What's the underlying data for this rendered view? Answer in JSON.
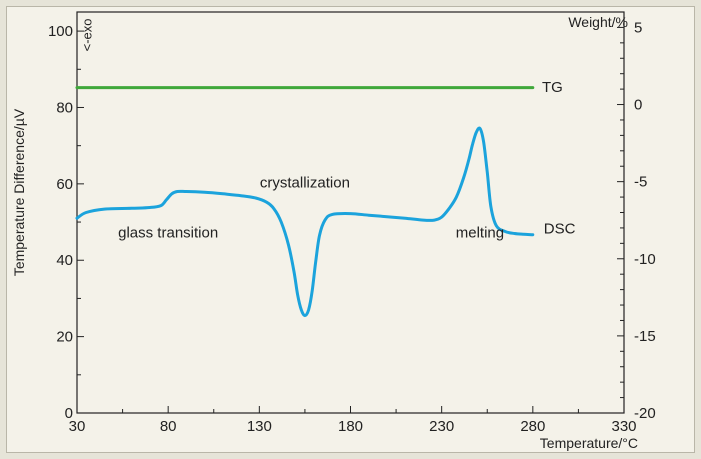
{
  "chart_data": {
    "type": "line",
    "xlabel": "Temperature/°C",
    "ylabel_left": "Temperature Difference/µV",
    "ylabel_right": "Weight/%",
    "xlim": [
      30,
      330
    ],
    "ylim_left": [
      0,
      105
    ],
    "ylim_right": [
      -20,
      6
    ],
    "x_ticks": [
      30,
      80,
      130,
      180,
      230,
      280,
      330
    ],
    "y_ticks_left": [
      0,
      20,
      40,
      60,
      80,
      100
    ],
    "y_ticks_right": [
      5,
      0,
      -5,
      -10,
      -15,
      -20
    ],
    "grid": false,
    "series": [
      {
        "name": "TG",
        "axis": "right",
        "color": "#3fa83a",
        "x": [
          30,
          280
        ],
        "y": [
          1.1,
          1.1
        ]
      },
      {
        "name": "DSC",
        "axis": "left",
        "color": "#1ba3dc",
        "x": [
          30,
          35,
          45,
          60,
          70,
          76,
          79,
          82,
          85,
          90,
          100,
          110,
          120,
          128,
          134,
          138,
          142,
          146,
          149,
          151,
          153,
          155,
          157,
          159,
          161,
          163,
          166,
          170,
          180,
          190,
          200,
          210,
          220,
          226,
          230,
          234,
          238,
          242,
          245,
          247,
          249,
          251,
          253,
          255,
          257,
          260,
          265,
          270,
          275,
          280
        ],
        "y": [
          51,
          52.5,
          53.4,
          53.6,
          53.8,
          54.3,
          55.8,
          57.4,
          58,
          58,
          57.8,
          57.4,
          56.9,
          56.3,
          55.2,
          53.5,
          50,
          44,
          37,
          31,
          27,
          25.5,
          27,
          32,
          40,
          46.5,
          50.5,
          52,
          52.2,
          51.8,
          51.4,
          51,
          50.5,
          50.5,
          51.3,
          53.5,
          56.5,
          61.5,
          66.5,
          70.5,
          73.5,
          74.5,
          71,
          63,
          54,
          49,
          47.5,
          47,
          46.8,
          46.7
        ]
      }
    ],
    "annotations": [
      {
        "text": "glass transition",
        "x": 80,
        "y": 46
      },
      {
        "text": "crystallization",
        "x": 155,
        "y": 59
      },
      {
        "text": "melting",
        "x": 251,
        "y": 46
      },
      {
        "text": "TG",
        "x": 285,
        "y": 84
      },
      {
        "text": "DSC",
        "x": 286,
        "y": 47
      },
      {
        "text": "<-exo",
        "x": 38,
        "y": 99,
        "rotated": true
      }
    ]
  }
}
